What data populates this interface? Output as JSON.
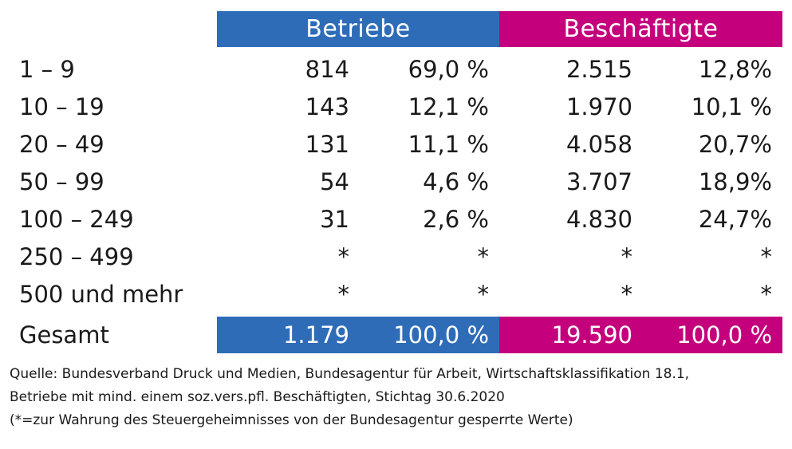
{
  "chart_data": {
    "type": "table",
    "header": {
      "betriebe": "Betriebe",
      "beschaeftigte": "Beschäftigte"
    },
    "rows": [
      {
        "label": "1 – 9",
        "betriebe": "814",
        "betriebe_pct": "69,0 %",
        "beschaeftigte": "2.515",
        "beschaeftigte_pct": "12,8%"
      },
      {
        "label": "10 – 19",
        "betriebe": "143",
        "betriebe_pct": "12,1 %",
        "beschaeftigte": "1.970",
        "beschaeftigte_pct": "10,1 %"
      },
      {
        "label": "20 – 49",
        "betriebe": "131",
        "betriebe_pct": "11,1 %",
        "beschaeftigte": "4.058",
        "beschaeftigte_pct": "20,7%"
      },
      {
        "label": "50 – 99",
        "betriebe": "54",
        "betriebe_pct": "4,6 %",
        "beschaeftigte": "3.707",
        "beschaeftigte_pct": "18,9%"
      },
      {
        "label": "100 – 249",
        "betriebe": "31",
        "betriebe_pct": "2,6 %",
        "beschaeftigte": "4.830",
        "beschaeftigte_pct": "24,7%"
      },
      {
        "label": "250 – 499",
        "betriebe": "*",
        "betriebe_pct": "*",
        "beschaeftigte": "*",
        "beschaeftigte_pct": "*"
      },
      {
        "label": "500 und mehr",
        "betriebe": "*",
        "betriebe_pct": "*",
        "beschaeftigte": "*",
        "beschaeftigte_pct": "*"
      }
    ],
    "total": {
      "label": "Gesamt",
      "betriebe": "1.179",
      "betriebe_pct": "100,0 %",
      "beschaeftigte": "19.590",
      "beschaeftigte_pct": "100,0 %"
    },
    "colors": {
      "betriebe": "#2e6cb8",
      "beschaeftigte": "#c5007c"
    }
  },
  "source": [
    "Quelle: Bundesverband Druck und Medien, Bundesagentur für Arbeit, Wirtschaftsklassifikation 18.1,",
    "Betriebe mit mind. einem soz.vers.pfl. Beschäftigten, Stichtag 30.6.2020",
    "(*=zur Wahrung des Steuergeheimnisses von der Bundesagentur gesperrte Werte)"
  ]
}
